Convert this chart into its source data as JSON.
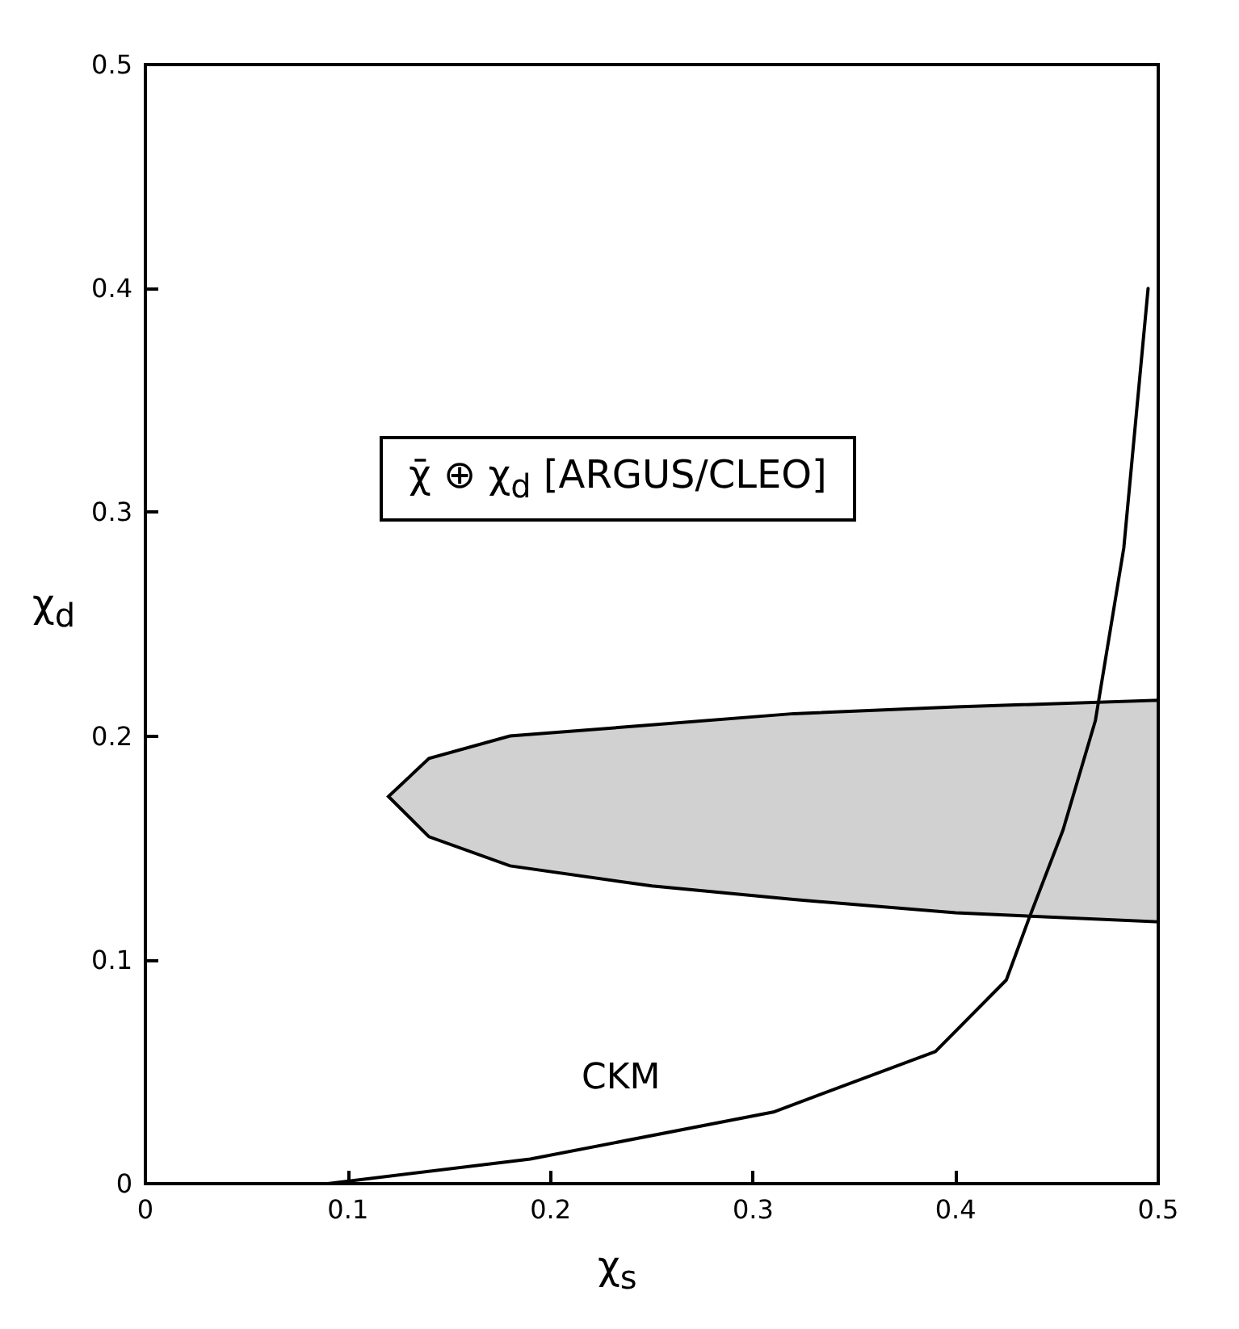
{
  "chart_data": {
    "type": "line",
    "xlabel": "χ$_{s}$",
    "ylabel": "χ$_{d}$",
    "xlim": [
      0,
      0.5
    ],
    "ylim": [
      0,
      0.5
    ],
    "xticks": [
      0,
      0.1,
      0.2,
      0.3,
      0.4,
      0.5
    ],
    "yticks": [
      0,
      0.1,
      0.2,
      0.3,
      0.4,
      0.5
    ],
    "grid": false,
    "marker": "none",
    "line_style": "solid",
    "annotations": [
      "χ̄ ⊕ χ$_{d}$ [ARGUS/CLEO]",
      "CKM"
    ],
    "series": [
      {
        "color": "#000000",
        "x": [
          0.12,
          0.14,
          0.18,
          0.25,
          0.32,
          0.4,
          0.5
        ],
        "values": [
          null,
          null,
          null,
          null,
          null,
          null,
          null
        ],
        "upper": [
          0.173,
          0.19,
          0.2,
          0.205,
          0.21,
          0.213,
          0.216
        ],
        "lower": [
          0.173,
          0.155,
          0.142,
          0.133,
          0.127,
          0.121,
          0.117
        ]
      },
      {
        "color": "#000000",
        "x": [
          0,
          0.09,
          0.19,
          0.31,
          0.39,
          0.425,
          0.436,
          0.453,
          0.469,
          0.483,
          0.495
        ],
        "values": [
          0,
          0.0,
          0.011,
          0.032,
          0.059,
          0.091,
          0.118,
          0.158,
          0.207,
          0.284,
          0.4
        ]
      }
    ]
  }
}
